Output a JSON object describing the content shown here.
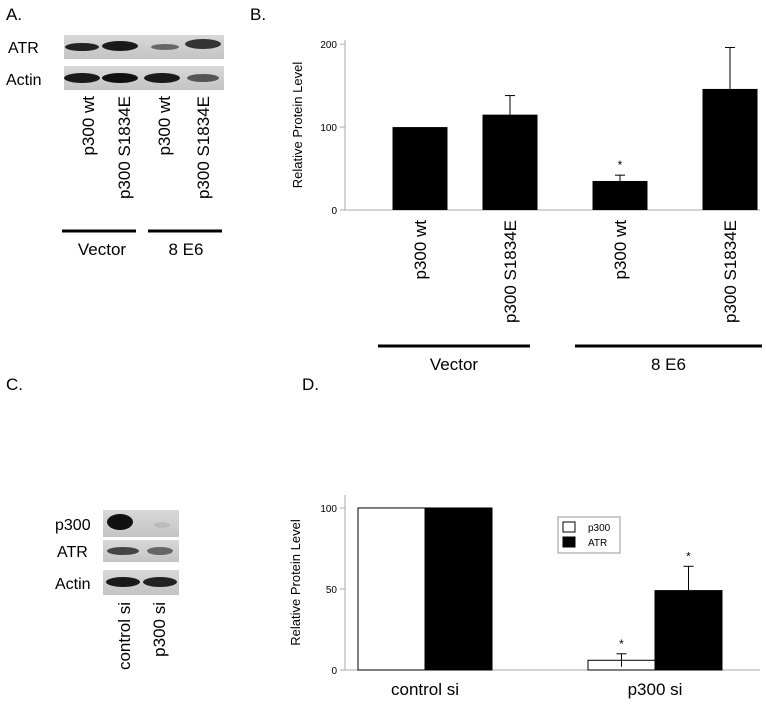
{
  "panel_labels": [
    "A.",
    "B.",
    "C.",
    "D."
  ],
  "blot_a": {
    "rows": [
      "ATR",
      "Actin"
    ],
    "lanes": [
      "p300 wt",
      "p300 S1834E",
      "p300 wt",
      "p300 S1834E"
    ],
    "groups": [
      "Vector",
      "8 E6"
    ]
  },
  "blot_c": {
    "rows": [
      "p300",
      "ATR",
      "Actin"
    ],
    "lanes": [
      "control si",
      "p300 si"
    ]
  },
  "chart_data": [
    {
      "type": "bar",
      "ylabel": "Relative Protein Level",
      "categories": [
        "p300 wt",
        "p300 S1834E",
        "p300 wt",
        "p300 S1834E"
      ],
      "values": [
        100,
        115,
        35,
        146
      ],
      "errors": [
        null,
        23,
        7,
        50
      ],
      "color": "#000000",
      "ylim": [
        0,
        205
      ],
      "yticks": [
        0,
        100,
        200
      ],
      "groups": [
        "Vector",
        "8 E6"
      ],
      "annotations": [
        "*"
      ]
    },
    {
      "type": "grouped_bar",
      "ylabel": "Relative Protein Level",
      "categories": [
        "control si",
        "p300 si"
      ],
      "series": [
        {
          "name": "p300",
          "color": "#ffffff",
          "values": [
            100,
            6
          ],
          "errors": [
            null,
            4
          ]
        },
        {
          "name": "ATR",
          "color": "#000000",
          "values": [
            100,
            49
          ],
          "errors": [
            null,
            15
          ]
        }
      ],
      "ylim": [
        0,
        108
      ],
      "yticks": [
        0,
        50,
        100
      ],
      "legend": "upper right",
      "annotations": [
        "*",
        "*"
      ]
    }
  ]
}
